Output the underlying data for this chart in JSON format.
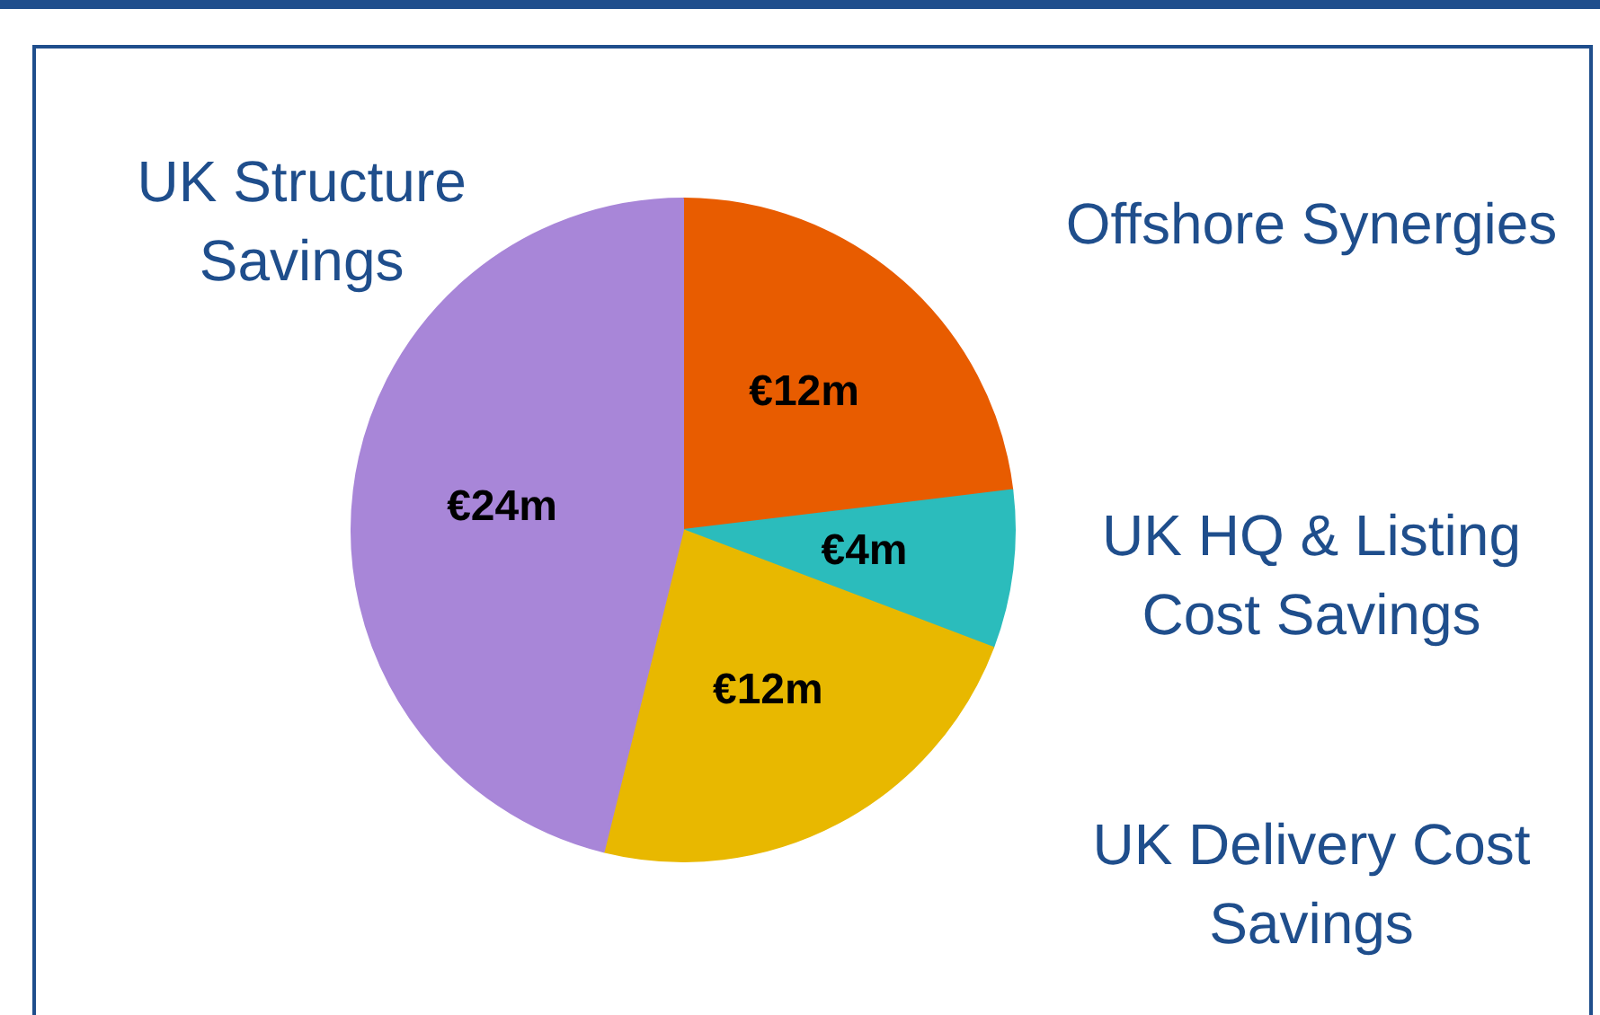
{
  "chart_data": {
    "type": "pie",
    "categories": [
      "Offshore Synergies",
      "UK HQ & Listing Cost Savings",
      "UK Delivery Cost Savings",
      "UK Structure Savings"
    ],
    "values": [
      12,
      4,
      12,
      24
    ],
    "value_labels": [
      "€12m",
      "€4m",
      "€12m",
      "€24m"
    ],
    "colors": [
      "#e85c00",
      "#2bbcbc",
      "#e8b800",
      "#a886d8"
    ],
    "legend": false
  }
}
